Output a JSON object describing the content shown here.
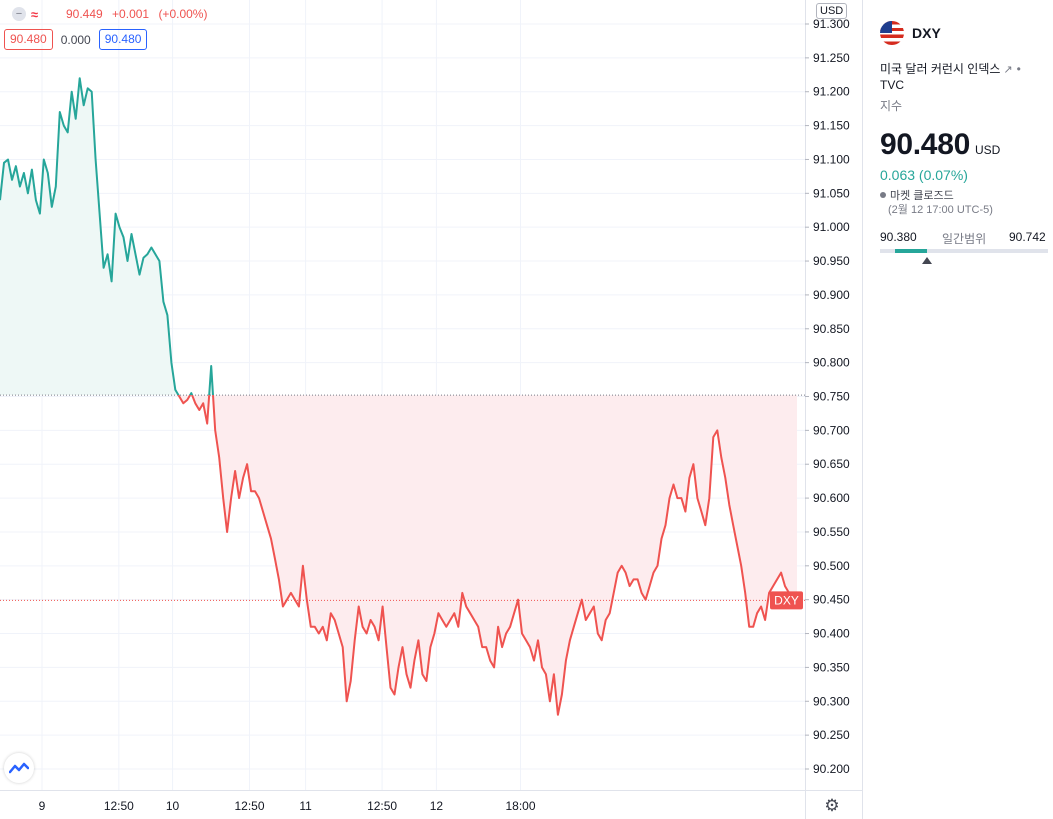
{
  "chart_data": {
    "type": "area",
    "symbol": "DXY",
    "currency_tag": "USD",
    "y_ticks": [
      "91.300",
      "91.250",
      "91.200",
      "91.150",
      "91.100",
      "91.050",
      "91.000",
      "90.950",
      "90.900",
      "90.850",
      "90.800",
      "90.750",
      "90.700",
      "90.650",
      "90.600",
      "90.550",
      "90.500",
      "90.450",
      "90.400",
      "90.350",
      "90.300",
      "90.250",
      "90.200"
    ],
    "ylim": [
      90.175,
      91.315
    ],
    "baseline": 90.752,
    "current_line": 90.449,
    "current_label": "DXY",
    "x_ticks": [
      "9",
      "12:50",
      "10",
      "12:50",
      "11",
      "12:50",
      "12",
      "18:00"
    ],
    "x_tick_positions": [
      0.0806,
      0.2279,
      0.3309,
      0.4785,
      0.586,
      0.7327,
      0.8369,
      0.9981
    ],
    "xlim": [
      0,
      1
    ],
    "series": [
      {
        "x": [
          0,
          0.005,
          0.01,
          0.015,
          0.02,
          0.025,
          0.03,
          0.035,
          0.04,
          0.045,
          0.05,
          0.055,
          0.06,
          0.065,
          0.07,
          0.075,
          0.08,
          0.085,
          0.09,
          0.095,
          0.1,
          0.105,
          0.11,
          0.115,
          0.12,
          0.125,
          0.13,
          0.135,
          0.14,
          0.145,
          0.15,
          0.155,
          0.16,
          0.165,
          0.17,
          0.175,
          0.18,
          0.185,
          0.19,
          0.195,
          0.2,
          0.205,
          0.21,
          0.215,
          0.22,
          0.225,
          0.23,
          0.235,
          0.24,
          0.245,
          0.25,
          0.255,
          0.26,
          0.265,
          0.27,
          0.275,
          0.28,
          0.285,
          0.29,
          0.295,
          0.3,
          0.305,
          0.31,
          0.315,
          0.32,
          0.325,
          0.33,
          0.335,
          0.34,
          0.345,
          0.35,
          0.355,
          0.36,
          0.365,
          0.37,
          0.375,
          0.38,
          0.385,
          0.39,
          0.395,
          0.4,
          0.405,
          0.41,
          0.415,
          0.42,
          0.425,
          0.43,
          0.435,
          0.44,
          0.445,
          0.45,
          0.455,
          0.46,
          0.465,
          0.47,
          0.475,
          0.48,
          0.485,
          0.49,
          0.495,
          0.5,
          0.505,
          0.51,
          0.515,
          0.52,
          0.525,
          0.53,
          0.535,
          0.54,
          0.545,
          0.55,
          0.555,
          0.56,
          0.565,
          0.57,
          0.575,
          0.58,
          0.585,
          0.59,
          0.595,
          0.6,
          0.605,
          0.61,
          0.615,
          0.62,
          0.625,
          0.63,
          0.635,
          0.64,
          0.645,
          0.65,
          0.655,
          0.66,
          0.665,
          0.67,
          0.675,
          0.68,
          0.685,
          0.69,
          0.695,
          0.7,
          0.705,
          0.71,
          0.715,
          0.72,
          0.725,
          0.73,
          0.735,
          0.74,
          0.745,
          0.75,
          0.755,
          0.76,
          0.765,
          0.77,
          0.775,
          0.78,
          0.785,
          0.79,
          0.795,
          0.8,
          0.805,
          0.81,
          0.815,
          0.82,
          0.825,
          0.83,
          0.835,
          0.84,
          0.845,
          0.85,
          0.855,
          0.86,
          0.865,
          0.87,
          0.875,
          0.88,
          0.885,
          0.89,
          0.895,
          0.9,
          0.905,
          0.91,
          0.915,
          0.92,
          0.925,
          0.93,
          0.935,
          0.94,
          0.945,
          0.95,
          0.955,
          0.96,
          0.965,
          0.97,
          0.975,
          0.98,
          0.985,
          0.99,
          0.995,
          1
        ],
        "values": [
          91.04,
          91.095,
          91.1,
          91.07,
          91.09,
          91.06,
          91.08,
          91.05,
          91.085,
          91.04,
          91.02,
          91.1,
          91.08,
          91.03,
          91.06,
          91.17,
          91.15,
          91.14,
          91.2,
          91.16,
          91.22,
          91.18,
          91.205,
          91.2,
          91.1,
          91.02,
          90.94,
          90.96,
          90.92,
          91.02,
          91,
          90.985,
          90.95,
          90.99,
          90.96,
          90.93,
          90.955,
          90.96,
          90.97,
          90.96,
          90.95,
          90.89,
          90.87,
          90.8,
          90.76,
          90.75,
          90.74,
          90.745,
          90.755,
          90.74,
          90.73,
          90.74,
          90.71,
          90.795,
          90.7,
          90.66,
          90.6,
          90.55,
          90.6,
          90.64,
          90.6,
          90.63,
          90.65,
          90.61,
          90.61,
          90.6,
          90.58,
          90.56,
          90.54,
          90.51,
          90.48,
          90.44,
          90.45,
          90.46,
          90.45,
          90.44,
          90.5,
          90.45,
          90.41,
          90.41,
          90.4,
          90.41,
          90.39,
          90.43,
          90.42,
          90.4,
          90.38,
          90.3,
          90.33,
          90.39,
          90.44,
          90.41,
          90.4,
          90.42,
          90.41,
          90.39,
          90.44,
          90.38,
          90.32,
          90.31,
          90.35,
          90.38,
          90.34,
          90.32,
          90.36,
          90.39,
          90.34,
          90.33,
          90.38,
          90.4,
          90.43,
          90.42,
          90.41,
          90.42,
          90.43,
          90.41,
          90.46,
          90.44,
          90.43,
          90.42,
          90.41,
          90.38,
          90.38,
          90.36,
          90.35,
          90.41,
          90.38,
          90.4,
          90.41,
          90.43,
          90.45,
          90.4,
          90.39,
          90.38,
          90.36,
          90.39,
          90.35,
          90.34,
          90.3,
          90.34,
          90.28,
          90.31,
          90.36,
          90.39,
          90.41,
          90.43,
          90.45,
          90.42,
          90.43,
          90.44,
          90.4,
          90.39,
          90.42,
          90.43,
          90.46,
          90.49,
          90.5,
          90.49,
          90.47,
          90.48,
          90.48,
          90.46,
          90.45,
          90.47,
          90.49,
          90.5,
          90.54,
          90.56,
          90.6,
          90.62,
          90.6,
          90.6,
          90.58,
          90.63,
          90.65,
          90.6,
          90.58,
          90.56,
          90.6,
          90.69,
          90.7,
          90.66,
          90.63,
          90.59,
          90.56,
          90.53,
          90.5,
          90.46,
          90.41,
          90.41,
          90.43,
          90.44,
          90.42,
          90.46,
          90.47,
          90.48,
          90.49,
          90.47,
          90.46,
          90.45,
          90.45
        ]
      }
    ],
    "colors": {
      "up": "#26a69a",
      "down": "#ef5350",
      "up_fill": "#eef8f6",
      "down_fill": "#fdecee"
    },
    "grid": true
  },
  "legend": {
    "toggle_icon": "eye-minus-icon",
    "compare_icon": "approx-icon",
    "last": "90.449",
    "change": "+0.001",
    "change_pct": "(+0.00%)",
    "bid": "90.480",
    "spread": "0.000",
    "ask": "90.480"
  },
  "icons": {
    "logo": "tradingview-logo-icon",
    "settings": "gear-icon"
  },
  "side_panel": {
    "symbol": "DXY",
    "flag": "us-flag-icon",
    "name": "미국 달러 커런시 인덱스",
    "external_icon": "external-link-icon",
    "exchange": "TVC",
    "type": "지수",
    "price": "90.480",
    "currency": "USD",
    "change": "0.063 (0.07%)",
    "market_status": "마켓 클로즈드",
    "market_time": "(2월 12 17:00 UTC-5)",
    "range_low": "90.380",
    "range_title": "일간범위",
    "range_high": "90.742",
    "range_fill_start": 0.09,
    "range_fill_end": 0.28,
    "range_marker": 0.28
  }
}
